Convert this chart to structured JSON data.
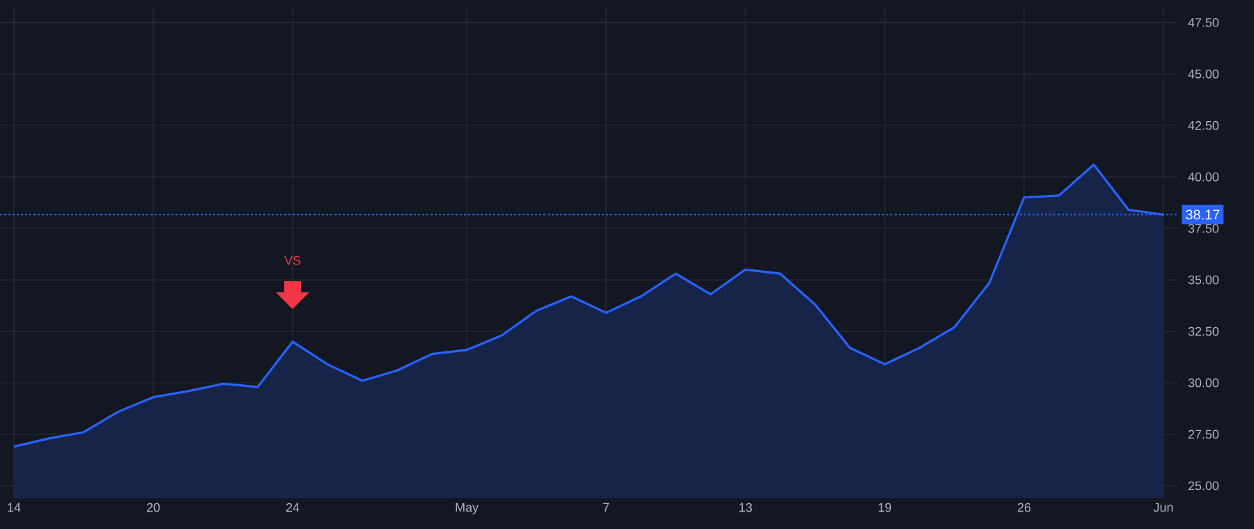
{
  "chart_data": {
    "type": "area",
    "categories": [
      "14",
      null,
      null,
      null,
      "20",
      null,
      null,
      null,
      "24",
      null,
      null,
      null,
      null,
      "May",
      null,
      null,
      null,
      "7",
      null,
      null,
      null,
      "13",
      null,
      null,
      null,
      "19",
      null,
      null,
      null,
      "26",
      null,
      null,
      null,
      "Jun"
    ],
    "series": [
      {
        "color": "#2962ff",
        "values": [
          26.9,
          27.3,
          27.6,
          28.6,
          29.3,
          29.6,
          29.95,
          29.8,
          32.0,
          30.9,
          30.1,
          30.6,
          31.4,
          31.6,
          32.3,
          33.5,
          34.2,
          33.4,
          34.2,
          35.3,
          34.3,
          35.5,
          35.3,
          33.8,
          31.7,
          30.9,
          31.7,
          32.7,
          34.85,
          39.0,
          39.1,
          40.6,
          38.4,
          38.17
        ]
      }
    ],
    "ylim": [
      24.4,
      48.2
    ],
    "yticks": [
      {
        "value": 25,
        "label": "25.00"
      },
      {
        "value": 27.5,
        "label": "27.50"
      },
      {
        "value": 30,
        "label": "30.00"
      },
      {
        "value": 32.5,
        "label": "32.50"
      },
      {
        "value": 35,
        "label": "35.00"
      },
      {
        "value": 37.5,
        "label": "37.50"
      },
      {
        "value": 40,
        "label": "40.00"
      },
      {
        "value": 42.5,
        "label": "42.50"
      },
      {
        "value": 45,
        "label": "45.00"
      },
      {
        "value": 47.5,
        "label": "47.50"
      }
    ],
    "grid": true,
    "ref_lines": [
      {
        "axis": "y",
        "value": 38.17,
        "label": "38.17",
        "color": "#2962ff",
        "line_style": "dotted"
      }
    ],
    "annotations": [
      "VS"
    ]
  }
}
